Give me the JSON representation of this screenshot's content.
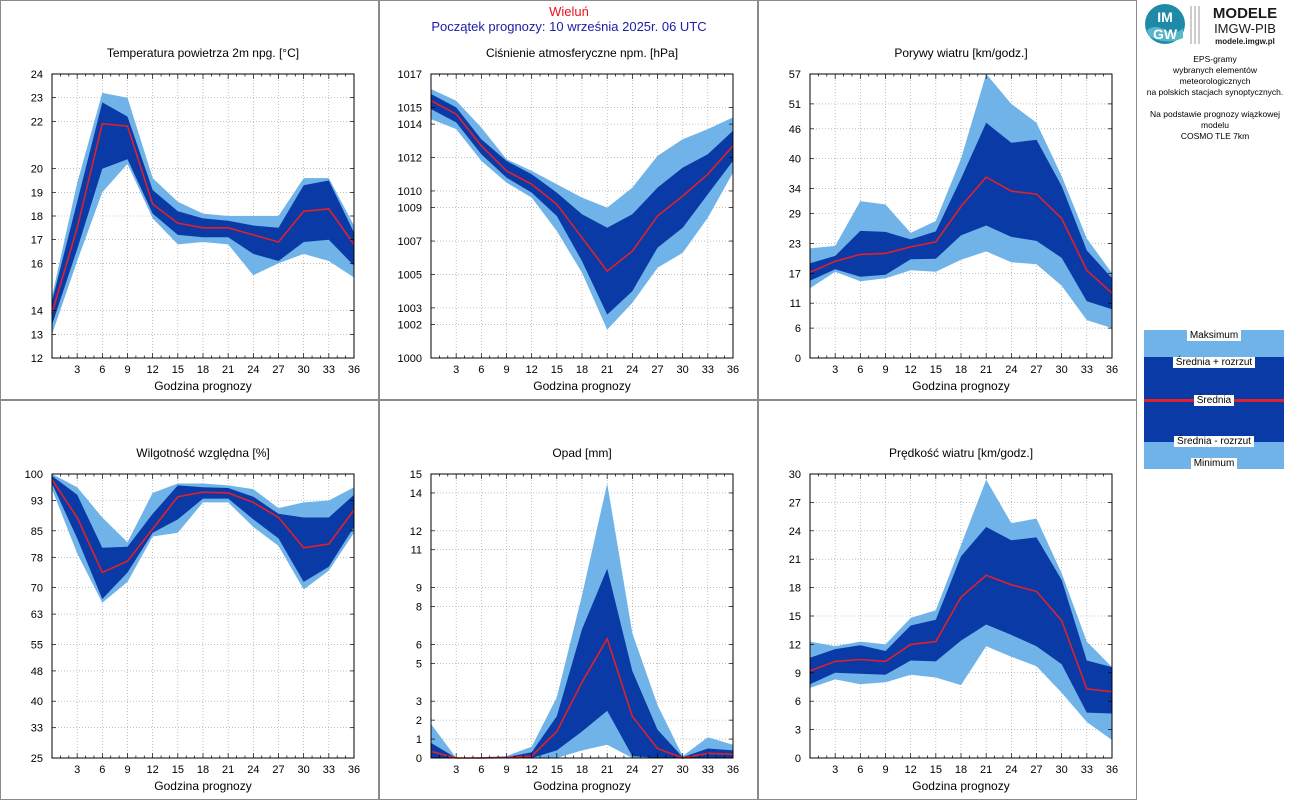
{
  "header": {
    "station": "Wieluń",
    "forecast_start": "Początek prognozy: 10 września 2025r. 06 UTC"
  },
  "sidebar": {
    "logo_mark": "IMGW",
    "logo_title": "MODELE",
    "logo_subtitle": "IMGW-PIB",
    "logo_url": "modele.imgw.pl",
    "desc_lines": [
      "EPS-gramy",
      "wybranych elementów meteorologicznych",
      "na polskich stacjach  synoptycznych."
    ],
    "desc_lines2": [
      "Na podstawie prognozy wiązkowej modelu",
      "COSMO TLE 7km"
    ],
    "legend": {
      "max": "Maksimum",
      "mean_plus": "Średnia + rozrzut",
      "mean": "Średnia",
      "mean_minus": "Średnia - rozrzut",
      "min": "Minimum"
    }
  },
  "colors": {
    "outer_band": "#6fb3e8",
    "inner_band": "#0a3aa6",
    "mean_line": "#e0202a",
    "station": "#e8141c",
    "header_text": "#1c1ca8"
  },
  "chart_data": [
    {
      "type": "area",
      "title": "Temperatura powietrza 2m npg. [°C]",
      "xlabel": "Godzina prognozy",
      "ylabel": "",
      "x": [
        0,
        3,
        6,
        9,
        12,
        15,
        18,
        21,
        24,
        27,
        30,
        33,
        36
      ],
      "xticks": [
        3,
        6,
        9,
        12,
        15,
        18,
        21,
        24,
        27,
        30,
        33,
        36
      ],
      "ylim": [
        12,
        24
      ],
      "yticks": [
        12,
        13,
        14,
        16,
        17,
        18,
        19,
        20,
        22,
        23,
        24
      ],
      "series": [
        {
          "name": "Maksimum",
          "values": [
            14.6,
            19.4,
            23.2,
            23.0,
            19.6,
            18.6,
            18.1,
            18.0,
            18.0,
            18.0,
            19.6,
            19.6,
            17.6
          ]
        },
        {
          "name": "Średnia + rozrzut",
          "values": [
            14.4,
            18.6,
            22.8,
            22.2,
            19.1,
            18.2,
            17.9,
            17.8,
            17.6,
            17.5,
            19.3,
            19.5,
            17.3
          ]
        },
        {
          "name": "Średnia",
          "values": [
            13.9,
            17.5,
            21.9,
            21.8,
            18.5,
            17.7,
            17.5,
            17.5,
            17.2,
            16.9,
            18.2,
            18.3,
            16.8
          ]
        },
        {
          "name": "Średnia - rozrzut",
          "values": [
            13.4,
            16.6,
            20.0,
            20.4,
            18.1,
            17.2,
            17.1,
            17.1,
            16.4,
            16.1,
            16.9,
            17.0,
            15.9
          ]
        },
        {
          "name": "Minimum",
          "values": [
            13.0,
            16.1,
            19.0,
            20.2,
            17.9,
            16.8,
            16.9,
            16.8,
            15.5,
            16.0,
            16.4,
            16.1,
            15.4
          ]
        }
      ]
    },
    {
      "type": "area",
      "title": "Ciśnienie atmosferyczne npm. [hPa]",
      "xlabel": "Godzina prognozy",
      "ylabel": "",
      "x": [
        0,
        3,
        6,
        9,
        12,
        15,
        18,
        21,
        24,
        27,
        30,
        33,
        36
      ],
      "xticks": [
        3,
        6,
        9,
        12,
        15,
        18,
        21,
        24,
        27,
        30,
        33,
        36
      ],
      "ylim": [
        1000,
        1017
      ],
      "yticks": [
        1000,
        1002,
        1003,
        1005,
        1007,
        1009,
        1010,
        1012,
        1014,
        1015,
        1017
      ],
      "series": [
        {
          "name": "Maksimum",
          "values": [
            1016.1,
            1015.4,
            1013.8,
            1011.9,
            1011.2,
            1010.4,
            1009.6,
            1009.0,
            1010.2,
            1012.1,
            1013.1,
            1013.7,
            1014.4
          ]
        },
        {
          "name": "Średnia + rozrzut",
          "values": [
            1015.8,
            1015.0,
            1013.1,
            1011.8,
            1011.0,
            1009.9,
            1008.6,
            1007.8,
            1008.6,
            1010.2,
            1011.4,
            1012.2,
            1013.6
          ]
        },
        {
          "name": "Średnia",
          "values": [
            1015.4,
            1014.6,
            1012.7,
            1011.2,
            1010.4,
            1009.2,
            1007.2,
            1005.2,
            1006.4,
            1008.5,
            1009.7,
            1011.0,
            1012.7
          ]
        },
        {
          "name": "Średnia - rozrzut",
          "values": [
            1014.9,
            1014.1,
            1012.2,
            1010.8,
            1009.9,
            1008.5,
            1005.8,
            1002.6,
            1004.0,
            1006.6,
            1007.8,
            1009.8,
            1011.8
          ]
        },
        {
          "name": "Minimum",
          "values": [
            1014.3,
            1013.7,
            1011.8,
            1010.5,
            1009.6,
            1007.6,
            1005.1,
            1001.7,
            1003.3,
            1005.4,
            1006.3,
            1008.4,
            1011.1
          ]
        }
      ]
    },
    {
      "type": "area",
      "title": "Porywy wiatru [km/godz.]",
      "xlabel": "Godzina prognozy",
      "ylabel": "",
      "x": [
        0,
        3,
        6,
        9,
        12,
        15,
        18,
        21,
        24,
        27,
        30,
        33,
        36
      ],
      "xticks": [
        3,
        6,
        9,
        12,
        15,
        18,
        21,
        24,
        27,
        30,
        33,
        36
      ],
      "ylim": [
        0,
        57
      ],
      "yticks": [
        0,
        6,
        11,
        17,
        23,
        29,
        34,
        40,
        46,
        51,
        57
      ],
      "series": [
        {
          "name": "Maksimum",
          "values": [
            22,
            22.5,
            31.5,
            30.8,
            25.1,
            27.5,
            40.0,
            57.0,
            51.0,
            47.2,
            36.5,
            24.0,
            17.0
          ]
        },
        {
          "name": "Średnia + rozrzut",
          "values": [
            19,
            20.5,
            25.5,
            25.3,
            23.8,
            25.4,
            36.0,
            47.2,
            43.2,
            43.8,
            34.5,
            21.6,
            16.0
          ]
        },
        {
          "name": "Średnia",
          "values": [
            17.2,
            19.4,
            20.8,
            21.0,
            22.3,
            23.3,
            30.4,
            36.3,
            33.5,
            32.9,
            28.0,
            17.6,
            13.0
          ]
        },
        {
          "name": "Średnia - rozrzut",
          "values": [
            15.5,
            17.8,
            16.3,
            16.7,
            19.8,
            19.9,
            24.6,
            26.6,
            24.3,
            23.5,
            20.1,
            11.4,
            9.8
          ]
        },
        {
          "name": "Minimum",
          "values": [
            14,
            17.3,
            15.4,
            16.0,
            17.6,
            17.3,
            19.7,
            21.4,
            19.2,
            18.8,
            14.5,
            7.6,
            6.0
          ]
        }
      ]
    },
    {
      "type": "area",
      "title": "Wilgotność względna [%]",
      "xlabel": "Godzina prognozy",
      "ylabel": "",
      "x": [
        0,
        3,
        6,
        9,
        12,
        15,
        18,
        21,
        24,
        27,
        30,
        33,
        36
      ],
      "xticks": [
        3,
        6,
        9,
        12,
        15,
        18,
        21,
        24,
        27,
        30,
        33,
        36
      ],
      "ylim": [
        25,
        100
      ],
      "yticks": [
        25,
        33,
        40,
        48,
        55,
        63,
        70,
        78,
        85,
        93,
        100
      ],
      "series": [
        {
          "name": "Maksimum",
          "values": [
            100,
            96.5,
            88.5,
            82.0,
            95.0,
            97.5,
            97.5,
            97.0,
            96.0,
            91.0,
            92.5,
            93.0,
            96.5
          ]
        },
        {
          "name": "Średnia + rozrzut",
          "values": [
            99.5,
            94.5,
            80.5,
            80.8,
            89.5,
            97.0,
            96.5,
            96.3,
            94.0,
            89.5,
            88.5,
            88.5,
            94.5
          ]
        },
        {
          "name": "Średnia",
          "values": [
            98.5,
            88.5,
            74.0,
            77.0,
            85.5,
            94.0,
            95.2,
            95.0,
            92.5,
            88.5,
            80.5,
            81.5,
            90.5
          ]
        },
        {
          "name": "Średnia - rozrzut",
          "values": [
            97.5,
            83.0,
            67.0,
            74.0,
            84.5,
            88.0,
            93.5,
            93.5,
            88.0,
            83.0,
            71.5,
            75.5,
            86.0
          ]
        },
        {
          "name": "Minimum",
          "values": [
            96.0,
            79.0,
            66.0,
            71.5,
            83.5,
            84.5,
            92.5,
            92.5,
            86.0,
            81.0,
            69.5,
            74.5,
            84.5
          ]
        }
      ]
    },
    {
      "type": "area",
      "title": "Opad [mm]",
      "xlabel": "Godzina prognozy",
      "ylabel": "",
      "x": [
        0,
        3,
        6,
        9,
        12,
        15,
        18,
        21,
        24,
        27,
        30,
        33,
        36
      ],
      "xticks": [
        3,
        6,
        9,
        12,
        15,
        18,
        21,
        24,
        27,
        30,
        33,
        36
      ],
      "ylim": [
        0,
        15
      ],
      "yticks": [
        0,
        1,
        2,
        3,
        5,
        6,
        8,
        9,
        11,
        12,
        14,
        15
      ],
      "series": [
        {
          "name": "Maksimum",
          "values": [
            1.8,
            0.0,
            0.05,
            0.1,
            0.6,
            3.2,
            8.6,
            14.5,
            6.6,
            2.8,
            0.1,
            1.1,
            0.7
          ]
        },
        {
          "name": "Średnia + rozrzut",
          "values": [
            0.8,
            0.0,
            0.0,
            0.05,
            0.3,
            2.2,
            6.8,
            10.0,
            4.6,
            1.5,
            0.05,
            0.5,
            0.4
          ]
        },
        {
          "name": "Średnia",
          "values": [
            0.35,
            0.0,
            0.0,
            0.02,
            0.1,
            1.4,
            4.0,
            6.3,
            2.2,
            0.5,
            0.0,
            0.25,
            0.2
          ]
        },
        {
          "name": "Średnia - rozrzut",
          "values": [
            0.0,
            0.0,
            0.0,
            0.0,
            0.0,
            0.4,
            1.4,
            2.5,
            0.1,
            0.0,
            0.0,
            0.0,
            0.0
          ]
        },
        {
          "name": "Minimum",
          "values": [
            0.0,
            0.0,
            0.0,
            0.0,
            0.0,
            0.0,
            0.4,
            0.7,
            0.0,
            0.0,
            0.0,
            0.0,
            0.0
          ]
        }
      ]
    },
    {
      "type": "area",
      "title": "Prędkość wiatru [km/godz.]",
      "xlabel": "Godzina prognozy",
      "ylabel": "",
      "x": [
        0,
        3,
        6,
        9,
        12,
        15,
        18,
        21,
        24,
        27,
        30,
        33,
        36
      ],
      "xticks": [
        3,
        6,
        9,
        12,
        15,
        18,
        21,
        24,
        27,
        30,
        33,
        36
      ],
      "ylim": [
        0,
        30
      ],
      "yticks": [
        0,
        3,
        6,
        9,
        12,
        15,
        18,
        21,
        24,
        27,
        30
      ],
      "series": [
        {
          "name": "Maksimum",
          "values": [
            12.3,
            11.8,
            12.3,
            12.0,
            14.8,
            15.6,
            22.5,
            29.4,
            24.8,
            25.3,
            19.5,
            12.3,
            9.6
          ]
        },
        {
          "name": "Średnia + rozrzut",
          "values": [
            10.6,
            11.5,
            11.9,
            11.3,
            14.0,
            14.6,
            21.3,
            24.4,
            23.0,
            23.3,
            18.8,
            10.3,
            9.6
          ]
        },
        {
          "name": "Średnia",
          "values": [
            9.2,
            10.2,
            10.4,
            10.2,
            12.0,
            12.3,
            17.0,
            19.3,
            18.3,
            17.6,
            14.5,
            7.3,
            7.0
          ]
        },
        {
          "name": "Średnia - rozrzut",
          "values": [
            7.8,
            9.0,
            8.9,
            8.8,
            10.3,
            10.2,
            12.4,
            14.1,
            13.0,
            11.8,
            9.9,
            4.8,
            4.7
          ]
        },
        {
          "name": "Minimum",
          "values": [
            7.4,
            8.3,
            7.8,
            8.0,
            8.8,
            8.5,
            7.7,
            11.8,
            10.7,
            9.7,
            6.9,
            3.8,
            1.9
          ]
        }
      ]
    }
  ]
}
